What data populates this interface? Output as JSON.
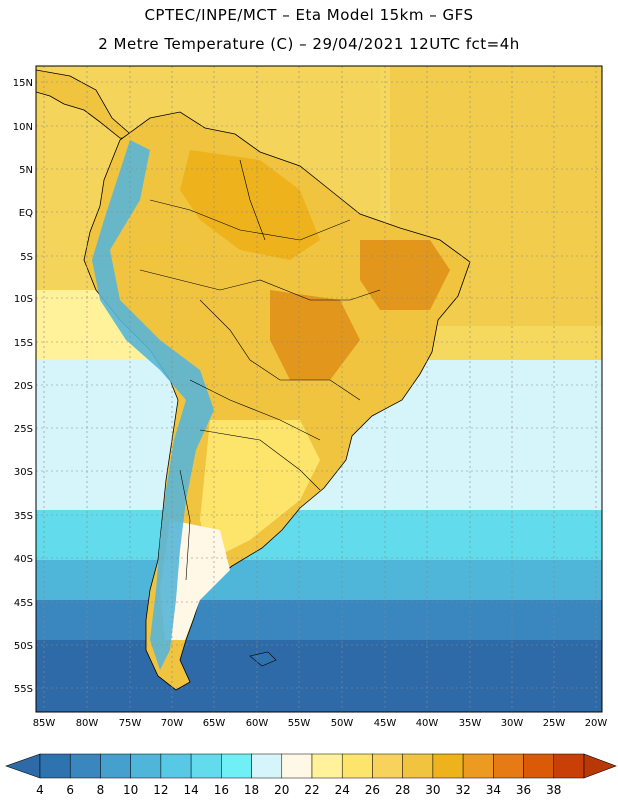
{
  "header": {
    "line1": "CPTEC/INPE/MCT –  Eta Model 15km – GFS",
    "line2": "2 Metre Temperature (C) – 29/04/2021 12UTC fct=4h"
  },
  "axes": {
    "lat_labels": [
      "15N",
      "10N",
      "5N",
      "EQ",
      "5S",
      "10S",
      "15S",
      "20S",
      "25S",
      "30S",
      "35S",
      "40S",
      "45S",
      "50S",
      "55S"
    ],
    "lon_labels": [
      "85W",
      "80W",
      "75W",
      "70W",
      "65W",
      "60W",
      "55W",
      "50W",
      "45W",
      "40W",
      "35W",
      "30W",
      "25W",
      "20W"
    ]
  },
  "colorbar": {
    "labels": [
      "4",
      "6",
      "8",
      "10",
      "12",
      "14",
      "16",
      "18",
      "20",
      "22",
      "24",
      "26",
      "28",
      "30",
      "32",
      "34",
      "36",
      "38"
    ],
    "colors": [
      "#2f72b0",
      "#3a86bf",
      "#45a0cd",
      "#4fb6da",
      "#58c9e4",
      "#62dcec",
      "#6ef0f6",
      "#d6f5fb",
      "#fff8e6",
      "#fff29a",
      "#fde46a",
      "#f7d35c",
      "#f1c440",
      "#edb21c",
      "#ed9a20",
      "#e67a15",
      "#db5a08",
      "#c84008"
    ],
    "low_arrow_color": "#2f6aa8",
    "high_arrow_color": "#b83808"
  },
  "map_colors": {
    "ocean_tropical": "#f4d45a",
    "ocean_subtropical": "#fff29a",
    "ocean_mid": "#d6f5fb",
    "ocean_cool": "#62dcec",
    "ocean_cold": "#45a0cd",
    "ocean_polar": "#2f6aa8",
    "land_warm": "#f1c440",
    "land_hot": "#e2961c",
    "andes": "#58b6d8"
  }
}
